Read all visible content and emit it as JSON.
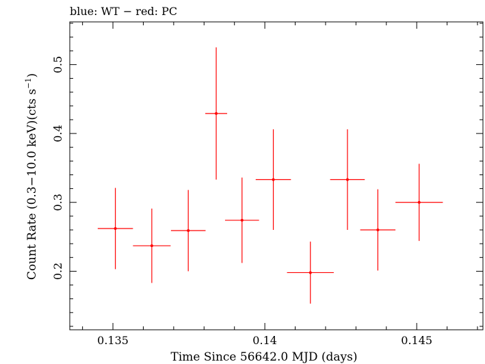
{
  "chart_data": {
    "type": "scatter",
    "title": "blue: WT − red: PC",
    "xlabel": "Time Since 56642.0 MJD (days)",
    "ylabel": "Count Rate (0.3−10.0 keV)(cts s",
    "ylabel_sup": "−1",
    "ylabel_close": ")",
    "xlim": [
      0.13358,
      0.14718
    ],
    "ylim": [
      0.115,
      0.562
    ],
    "x_ticks": [
      0.135,
      0.14,
      0.145
    ],
    "x_tick_labels": [
      "0.135",
      "0.14",
      "0.145"
    ],
    "y_ticks": [
      0.2,
      0.3,
      0.4,
      0.5
    ],
    "y_tick_labels": [
      "0.2",
      "0.3",
      "0.4",
      "0.5"
    ],
    "grid": false,
    "series": [
      {
        "color": "#ff0000",
        "points": [
          {
            "x": 0.13508,
            "xerr": 0.00058,
            "y": 0.262,
            "yerr": 0.059
          },
          {
            "x": 0.13628,
            "xerr": 0.00062,
            "y": 0.237,
            "yerr": 0.054
          },
          {
            "x": 0.13748,
            "xerr": 0.00057,
            "y": 0.259,
            "yerr": 0.059
          },
          {
            "x": 0.1384,
            "xerr": 0.00036,
            "y": 0.429,
            "yerr": 0.096
          },
          {
            "x": 0.13925,
            "xerr": 0.00056,
            "y": 0.274,
            "yerr": 0.062
          },
          {
            "x": 0.14028,
            "xerr": 0.00058,
            "y": 0.333,
            "yerr": 0.073
          },
          {
            "x": 0.1415,
            "xerr": 0.00077,
            "y": 0.198,
            "yerr": 0.045
          },
          {
            "x": 0.14272,
            "xerr": 0.00057,
            "y": 0.333,
            "yerr": 0.073
          },
          {
            "x": 0.14372,
            "xerr": 0.00058,
            "y": 0.26,
            "yerr": 0.059
          },
          {
            "x": 0.14508,
            "xerr": 0.00078,
            "y": 0.3,
            "yerr": 0.056
          }
        ]
      }
    ]
  }
}
